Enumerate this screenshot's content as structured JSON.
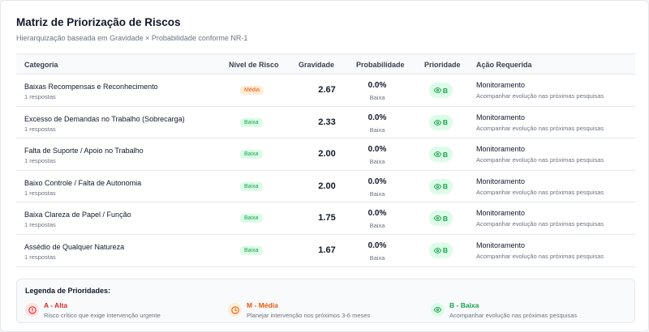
{
  "header": {
    "title": "Matriz de Priorização de Riscos",
    "subtitle": "Hierarquização baseada em Gravidade × Probabilidade conforme NR-1"
  },
  "columns": {
    "categoria": "Categoria",
    "nivel": "Nível de Risco",
    "gravidade": "Gravidade",
    "probabilidade": "Probabilidade",
    "prioridade": "Prioridade",
    "acao": "Ação Requerida"
  },
  "rows": [
    {
      "name": "Baixas Recompensas e Reconhecimento",
      "responses": "1 respostas",
      "level": "Média",
      "gravity": "2.67",
      "prob": "0.0%",
      "prob_label": "Baixa",
      "priority": "B",
      "action": "Monitoramento",
      "action_detail": "Acompanhar evolução nas próximas pesquisas"
    },
    {
      "name": "Excesso de Demandas no Trabalho (Sobrecarga)",
      "responses": "1 respostas",
      "level": "Baixa",
      "gravity": "2.33",
      "prob": "0.0%",
      "prob_label": "Baixa",
      "priority": "B",
      "action": "Monitoramento",
      "action_detail": "Acompanhar evolução nas próximas pesquisas"
    },
    {
      "name": "Falta de Suporte / Apoio no Trabalho",
      "responses": "1 respostas",
      "level": "Baixa",
      "gravity": "2.00",
      "prob": "0.0%",
      "prob_label": "Baixa",
      "priority": "B",
      "action": "Monitoramento",
      "action_detail": "Acompanhar evolução nas próximas pesquisas"
    },
    {
      "name": "Baixo Controle / Falta de Autonomia",
      "responses": "1 respostas",
      "level": "Baixa",
      "gravity": "2.00",
      "prob": "0.0%",
      "prob_label": "Baixa",
      "priority": "B",
      "action": "Monitoramento",
      "action_detail": "Acompanhar evolução nas próximas pesquisas"
    },
    {
      "name": "Baixa Clareza de Papel / Função",
      "responses": "1 respostas",
      "level": "Baixa",
      "gravity": "1.75",
      "prob": "0.0%",
      "prob_label": "Baixa",
      "priority": "B",
      "action": "Monitoramento",
      "action_detail": "Acompanhar evolução nas próximas pesquisas"
    },
    {
      "name": "Assédio de Qualquer Natureza",
      "responses": "1 respostas",
      "level": "Baixa",
      "gravity": "1.67",
      "prob": "0.0%",
      "prob_label": "Baixa",
      "priority": "B",
      "action": "Monitoramento",
      "action_detail": "Acompanhar evolução nas próximas pesquisas"
    }
  ],
  "legend": {
    "title": "Legenda de Prioridades:",
    "items": [
      {
        "label": "A - Alta",
        "desc": "Risco crítico que exige intervenção urgente",
        "color": "#dc2626",
        "bg": "#fee2e2",
        "icon": "alert-circle-icon"
      },
      {
        "label": "M - Média",
        "desc": "Planejar intervenção nos próximos 3-6 meses",
        "color": "#ea580c",
        "bg": "#ffedd5",
        "icon": "clock-icon"
      },
      {
        "label": "B - Baixa",
        "desc": "Acompanhar evolução nas próximas pesquisas",
        "color": "#16a34a",
        "bg": "#dcfce7",
        "icon": "eye-icon"
      }
    ]
  }
}
